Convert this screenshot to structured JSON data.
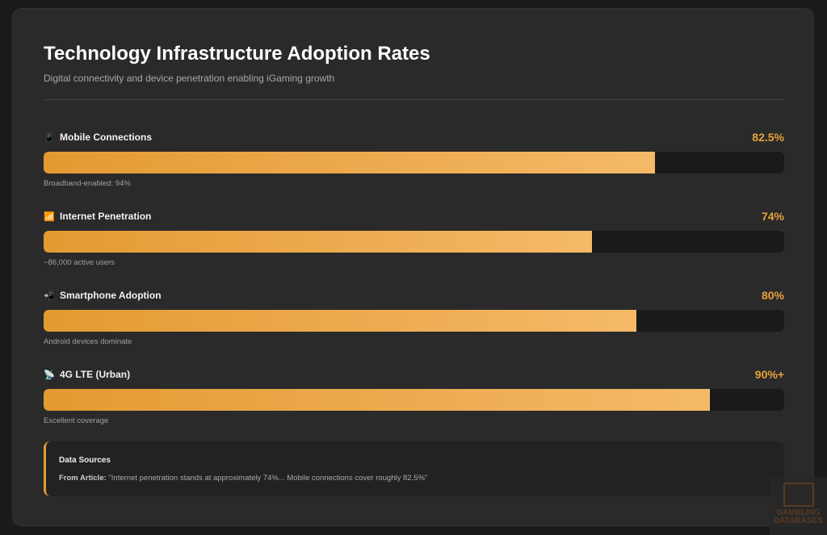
{
  "title": "Technology Infrastructure Adoption Rates",
  "subtitle": "Digital connectivity and device penetration enabling iGaming growth",
  "chart_data": {
    "type": "bar",
    "orientation": "horizontal",
    "xlim": [
      0,
      100
    ],
    "categories": [
      "Mobile Connections",
      "Internet Penetration",
      "Smartphone Adoption",
      "4G LTE (Urban)"
    ],
    "values": [
      82.5,
      74,
      80,
      90
    ],
    "value_labels": [
      "82.5%",
      "74%",
      "80%",
      "90%+"
    ],
    "notes": [
      "Broadband-enabled: 94%",
      "~86,000 active users",
      "Android devices dominate",
      "Excellent coverage"
    ],
    "icons": [
      "mobile-phone-icon",
      "signal-bars-icon",
      "phone-arrow-icon",
      "antenna-icon"
    ],
    "icon_glyphs": [
      "📱",
      "📶",
      "📲",
      "📡"
    ],
    "colors": {
      "fill_start": "#e39a32",
      "fill_end": "#f5b968",
      "track": "#1a1a1a",
      "value": "#e8a23a"
    }
  },
  "sources": {
    "title": "Data Sources",
    "label": "From Article:",
    "text": "\"Internet penetration stands at approximately 74%... Mobile connections cover roughly 82.5%\""
  },
  "watermark": "GAMBLING DATABASES"
}
